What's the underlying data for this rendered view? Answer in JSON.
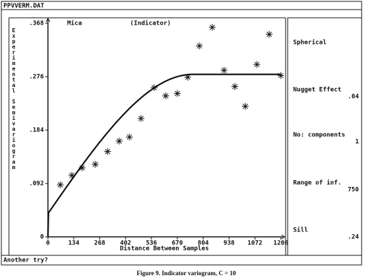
{
  "window_title": "PPVVERM.DAT",
  "prompt": "Another try?",
  "caption": "Figure 9. Indicator variogram, C = 10",
  "panel": {
    "model": "Spherical",
    "items": [
      {
        "label": "Nugget Effect",
        "value": {
          "value": 0.04,
          "label": ".04"
        }
      },
      {
        "label": "No: components",
        "value": 1
      },
      {
        "label": "Range of inf.",
        "value": 750
      },
      {
        "label": "Sill",
        "value": {
          "value": 0.24,
          "label": ".24"
        }
      }
    ]
  },
  "chart_data": {
    "type": "scatter",
    "title": "Mica",
    "subtitle": "(Indicator)",
    "x_label": "Distance Between Samples",
    "y_label": "Experimental Semivariogram",
    "x": [
      64,
      124,
      177,
      245,
      309,
      369,
      422,
      482,
      550,
      610,
      670,
      724,
      784,
      851,
      912,
      968,
      1022,
      1082,
      1146,
      1206
    ],
    "y": [
      0.0896,
      0.106,
      0.119,
      0.125,
      0.147,
      0.165,
      0.172,
      0.204,
      0.257,
      0.243,
      0.247,
      0.275,
      0.329,
      0.361,
      0.287,
      0.259,
      0.225,
      0.297,
      0.349,
      0.278
    ],
    "xlim": [
      0,
      1206
    ],
    "ylim": [
      0,
      0.368
    ],
    "xticks": [
      0,
      134,
      268,
      402,
      536,
      670,
      804,
      938,
      1072,
      1206
    ],
    "yticks": [
      0,
      {
        "value": 0.092,
        "label": ".092"
      },
      {
        "value": 0.184,
        "label": ".184"
      },
      {
        "value": 0.276,
        "label": ".276"
      },
      {
        "value": 0.368,
        "label": ".368"
      }
    ]
  }
}
